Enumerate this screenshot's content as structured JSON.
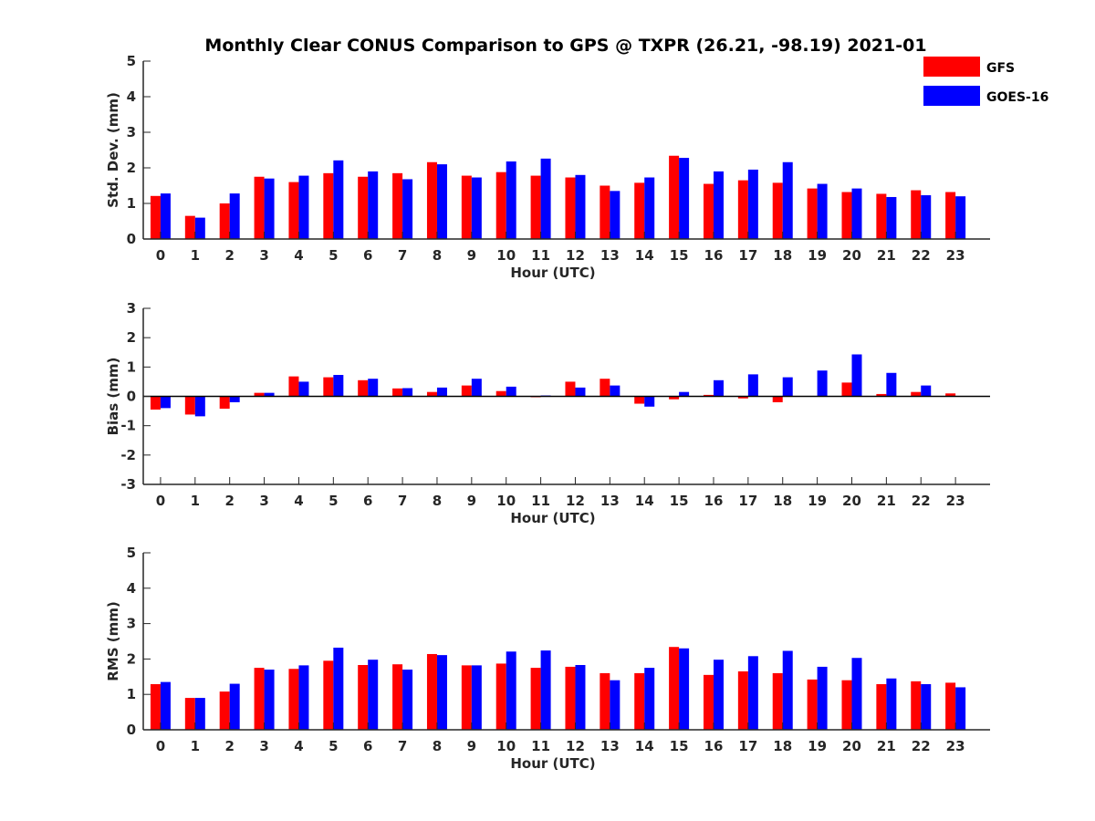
{
  "title": "Monthly Clear CONUS Comparison to GPS @ TXPR (26.21, -98.19) 2021-01",
  "colors": {
    "GFS": "#ff0000",
    "GOES-16": "#0000ff",
    "axis": "#262626"
  },
  "chart_data": [
    {
      "type": "bar",
      "ylabel": "Std. Dev. (mm)",
      "xlabel": "Hour (UTC)",
      "ylim": [
        0,
        5
      ],
      "yticks": [
        0,
        1,
        2,
        3,
        4,
        5
      ],
      "categories": [
        "0",
        "1",
        "2",
        "3",
        "4",
        "5",
        "6",
        "7",
        "8",
        "9",
        "10",
        "11",
        "12",
        "13",
        "14",
        "15",
        "16",
        "17",
        "18",
        "19",
        "20",
        "21",
        "22",
        "23"
      ],
      "legend": "top-right",
      "series": [
        {
          "name": "GFS",
          "values": [
            1.21,
            0.65,
            1.0,
            1.75,
            1.6,
            1.85,
            1.75,
            1.85,
            2.16,
            1.78,
            1.88,
            1.78,
            1.73,
            1.5,
            1.58,
            2.34,
            1.55,
            1.65,
            1.58,
            1.42,
            1.32,
            1.27,
            1.37,
            1.32
          ]
        },
        {
          "name": "GOES-16",
          "values": [
            1.28,
            0.6,
            1.28,
            1.7,
            1.78,
            2.21,
            1.9,
            1.68,
            2.1,
            1.73,
            2.18,
            2.26,
            1.8,
            1.35,
            1.73,
            2.28,
            1.9,
            1.95,
            2.16,
            1.55,
            1.42,
            1.18,
            1.23,
            1.2
          ]
        }
      ]
    },
    {
      "type": "bar",
      "ylabel": "Bias (mm)",
      "xlabel": "Hour (UTC)",
      "ylim": [
        -3,
        3
      ],
      "yticks": [
        -3,
        -2,
        -1,
        0,
        1,
        2,
        3
      ],
      "categories": [
        "0",
        "1",
        "2",
        "3",
        "4",
        "5",
        "6",
        "7",
        "8",
        "9",
        "10",
        "11",
        "12",
        "13",
        "14",
        "15",
        "16",
        "17",
        "18",
        "19",
        "20",
        "21",
        "22",
        "23"
      ],
      "series": [
        {
          "name": "GFS",
          "values": [
            -0.45,
            -0.62,
            -0.42,
            0.12,
            0.68,
            0.65,
            0.55,
            0.27,
            0.15,
            0.37,
            0.18,
            -0.03,
            0.5,
            0.6,
            -0.25,
            -0.1,
            0.05,
            -0.07,
            -0.2,
            0.0,
            0.47,
            0.08,
            0.15,
            0.1
          ]
        },
        {
          "name": "GOES-16",
          "values": [
            -0.4,
            -0.68,
            -0.2,
            0.12,
            0.5,
            0.73,
            0.6,
            0.28,
            0.3,
            0.6,
            0.33,
            0.03,
            0.3,
            0.37,
            -0.35,
            0.15,
            0.55,
            0.75,
            0.65,
            0.88,
            1.43,
            0.8,
            0.37,
            0.0
          ]
        }
      ]
    },
    {
      "type": "bar",
      "ylabel": "RMS (mm)",
      "xlabel": "Hour (UTC)",
      "ylim": [
        0,
        5
      ],
      "yticks": [
        0,
        1,
        2,
        3,
        4,
        5
      ],
      "categories": [
        "0",
        "1",
        "2",
        "3",
        "4",
        "5",
        "6",
        "7",
        "8",
        "9",
        "10",
        "11",
        "12",
        "13",
        "14",
        "15",
        "16",
        "17",
        "18",
        "19",
        "20",
        "21",
        "22",
        "23"
      ],
      "series": [
        {
          "name": "GFS",
          "values": [
            1.29,
            0.9,
            1.08,
            1.75,
            1.72,
            1.95,
            1.83,
            1.85,
            2.14,
            1.82,
            1.87,
            1.75,
            1.78,
            1.6,
            1.6,
            2.34,
            1.55,
            1.65,
            1.6,
            1.42,
            1.4,
            1.29,
            1.37,
            1.33
          ]
        },
        {
          "name": "GOES-16",
          "values": [
            1.35,
            0.9,
            1.3,
            1.7,
            1.82,
            2.32,
            1.98,
            1.7,
            2.11,
            1.82,
            2.21,
            2.24,
            1.83,
            1.4,
            1.75,
            2.3,
            1.98,
            2.08,
            2.23,
            1.78,
            2.03,
            1.45,
            1.29,
            1.2
          ]
        }
      ]
    }
  ]
}
